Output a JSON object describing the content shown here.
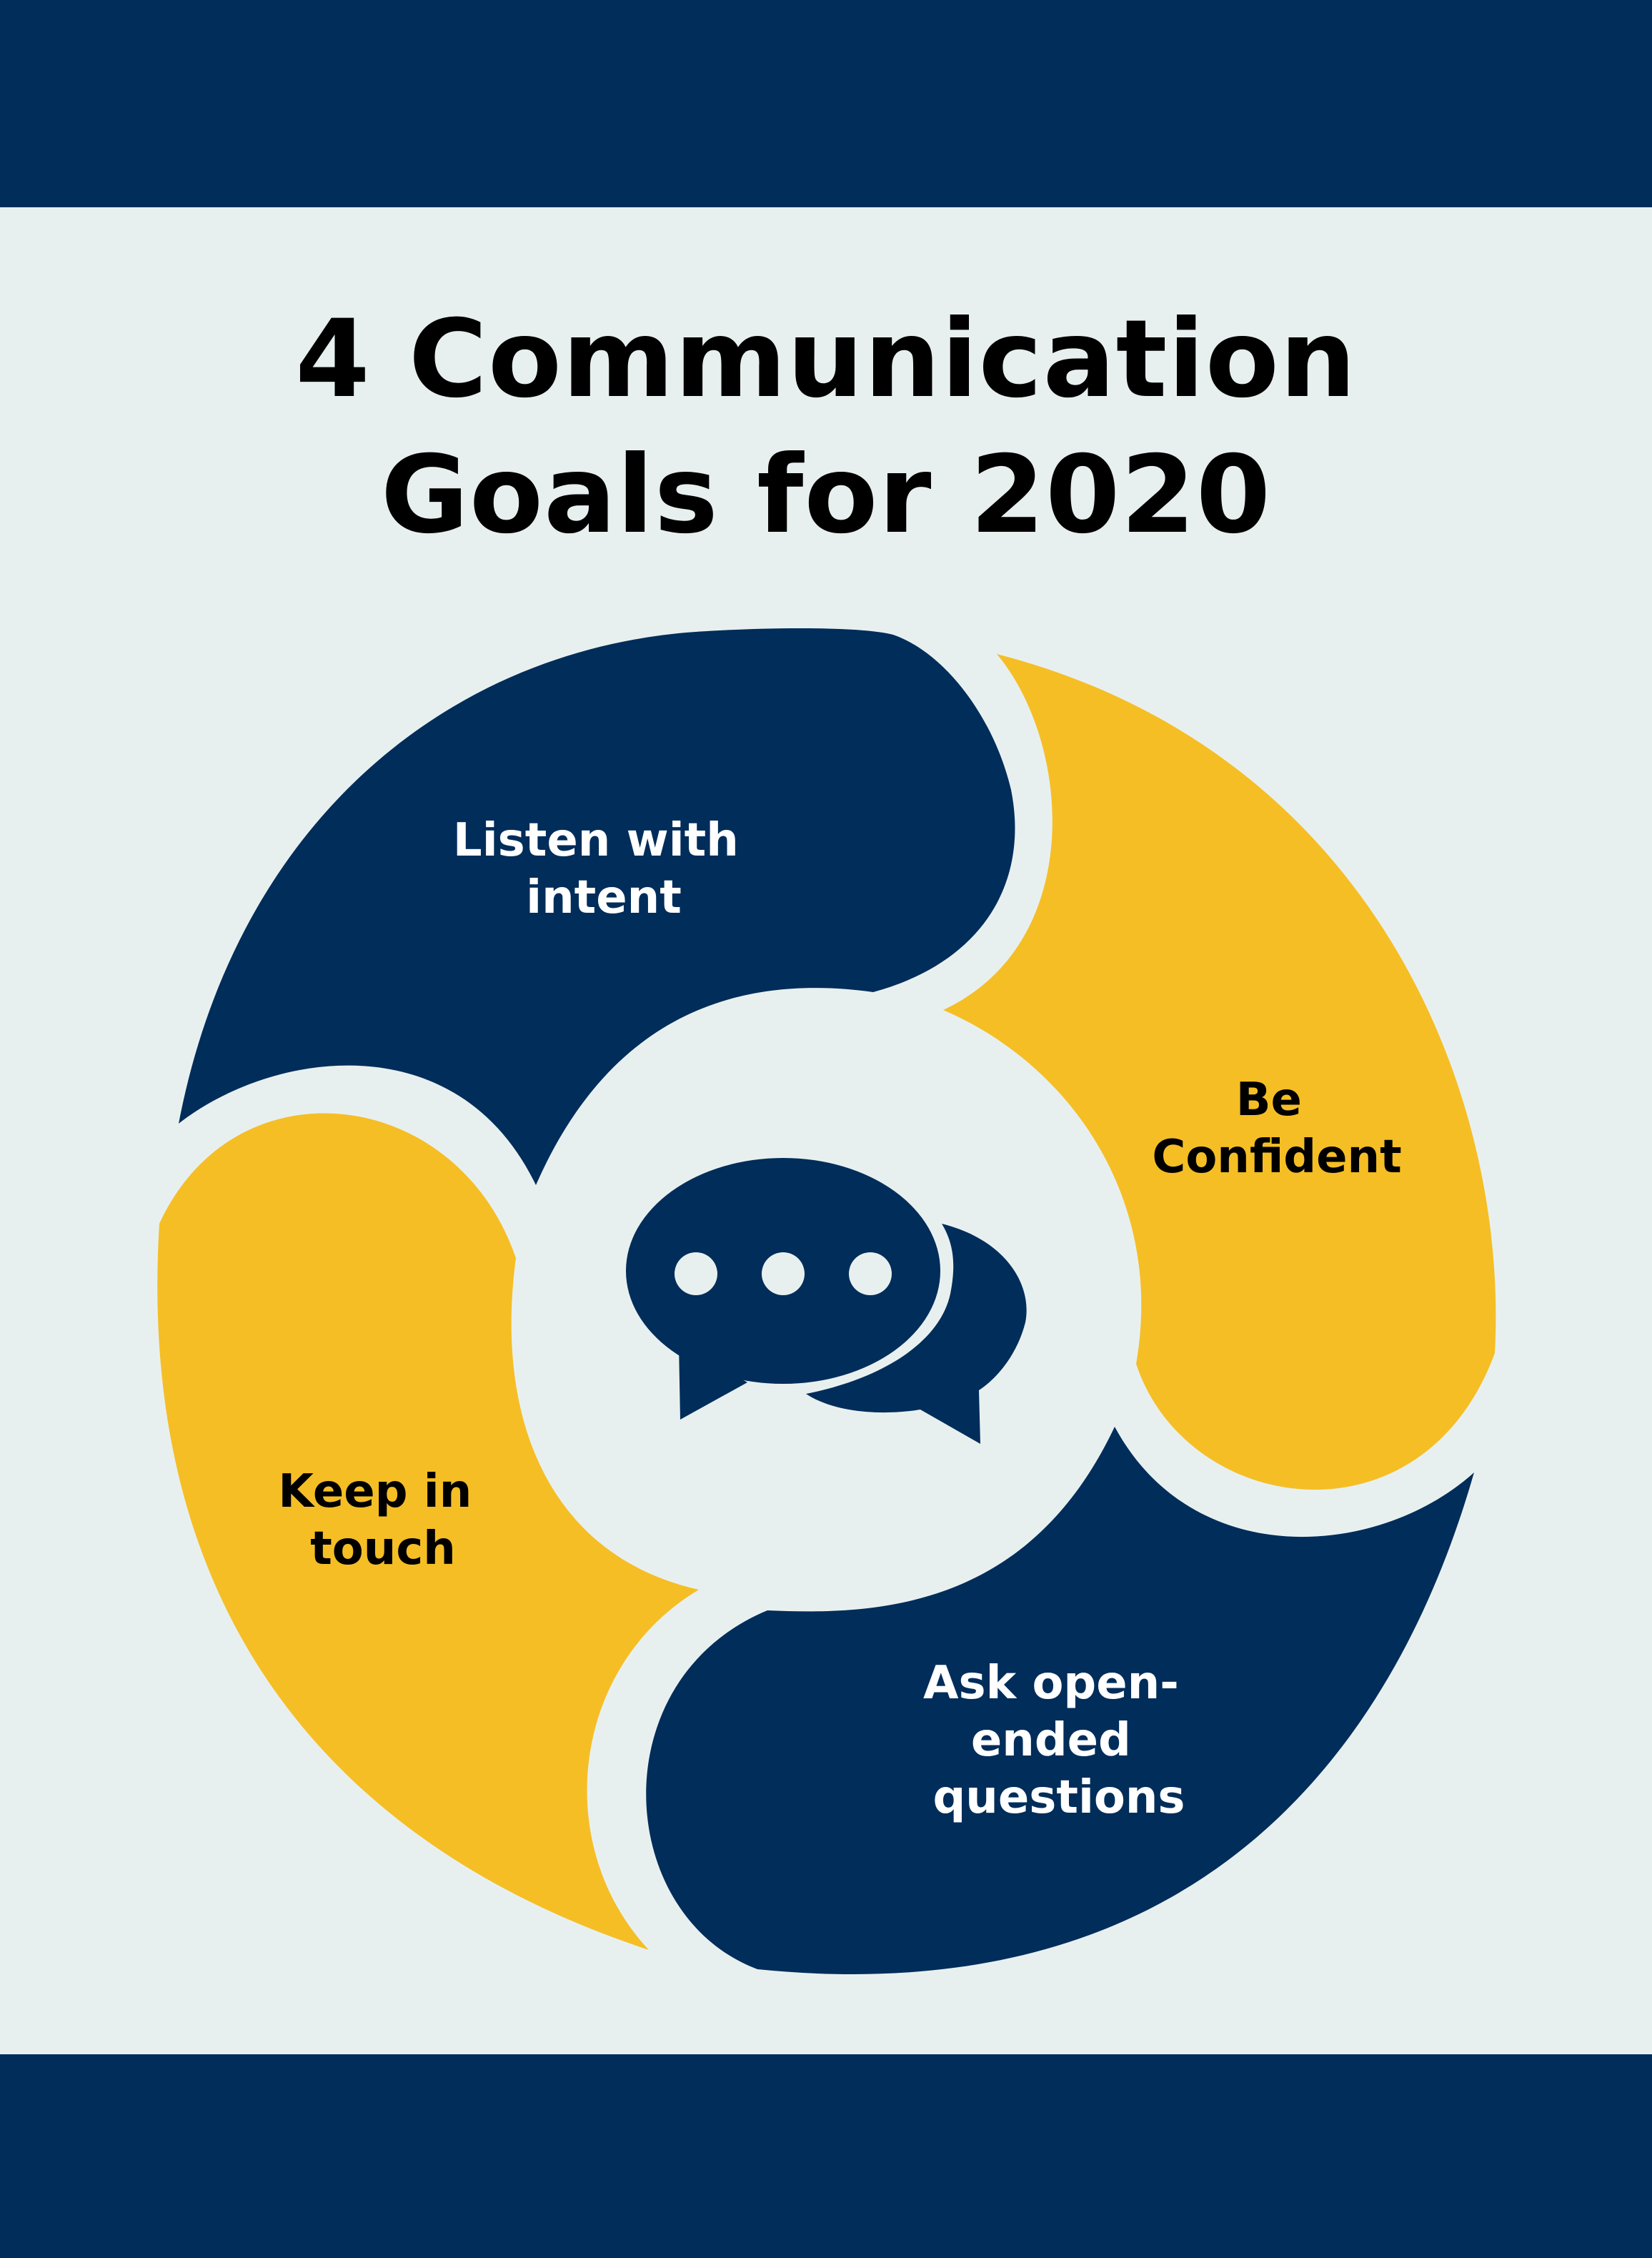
{
  "title": {
    "line1": "4 Communication",
    "line2": "Goals for 2020"
  },
  "colors": {
    "navy": "#002d5a",
    "gold": "#f5be25",
    "background": "#e8f0ef"
  },
  "goals": [
    {
      "lines": [
        "Listen with",
        "intent"
      ],
      "color": "navy",
      "text_color": "#ffffff"
    },
    {
      "lines": [
        "Be",
        "Confident"
      ],
      "color": "gold",
      "text_color": "#000000"
    },
    {
      "lines": [
        "Ask open-",
        "ended",
        "questions"
      ],
      "color": "navy",
      "text_color": "#ffffff"
    },
    {
      "lines": [
        "Keep in",
        "touch"
      ],
      "color": "gold",
      "text_color": "#000000"
    }
  ],
  "center_icon": "chat-bubbles-icon"
}
